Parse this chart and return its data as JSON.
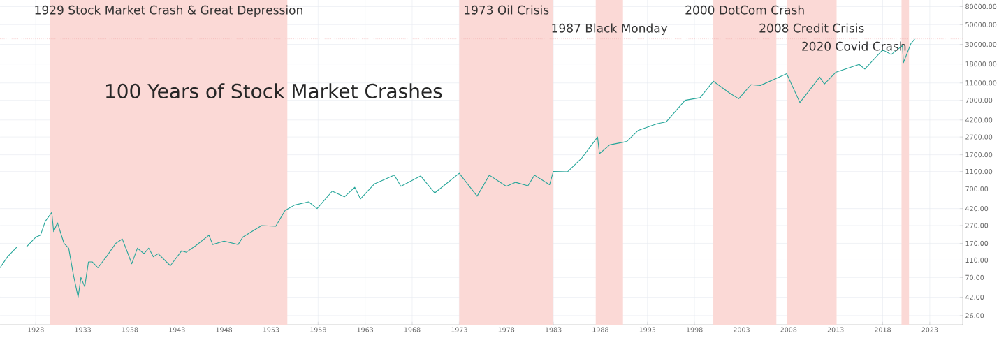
{
  "chart_data": {
    "type": "line",
    "title": "100 Years of Stock Market Crashes",
    "series": [
      {
        "color": "#26a69a",
        "x": [
          1924.2,
          1925.0,
          1926.0,
          1927.0,
          1928.0,
          1928.5,
          1929.0,
          1929.7,
          1929.9,
          1930.3,
          1931.0,
          1931.5,
          1932.0,
          1932.5,
          1932.8,
          1933.2,
          1933.6,
          1934.0,
          1934.6,
          1935.5,
          1936.5,
          1937.2,
          1937.8,
          1938.2,
          1938.8,
          1939.5,
          1940.0,
          1940.5,
          1941.0,
          1942.3,
          1943.5,
          1944.0,
          1945.0,
          1946.4,
          1946.8,
          1948.0,
          1949.5,
          1950.0,
          1952.0,
          1953.5,
          1954.5,
          1955.5,
          1957.0,
          1957.9,
          1959.5,
          1960.8,
          1961.9,
          1962.5,
          1964.0,
          1966.1,
          1966.8,
          1968.9,
          1970.4,
          1973.0,
          1974.9,
          1976.2,
          1978.0,
          1979.0,
          1980.3,
          1981.0,
          1982.6,
          1983.0,
          1984.5,
          1986.0,
          1987.7,
          1987.9,
          1989.0,
          1990.8,
          1992.0,
          1994.0,
          1995.0,
          1997.0,
          1998.6,
          2000.0,
          2001.7,
          2002.7,
          2004.0,
          2005.0,
          2007.8,
          2009.2,
          2011.3,
          2011.8,
          2013.0,
          2015.5,
          2016.1,
          2018.0,
          2018.9,
          2020.1,
          2020.2,
          2021.0,
          2021.4
        ],
        "values": [
          90,
          120,
          155,
          155,
          200,
          210,
          300,
          380,
          230,
          290,
          170,
          150,
          75,
          42,
          70,
          55,
          105,
          105,
          90,
          120,
          170,
          190,
          130,
          100,
          150,
          130,
          150,
          120,
          130,
          95,
          140,
          135,
          160,
          210,
          165,
          180,
          165,
          200,
          270,
          265,
          400,
          460,
          500,
          420,
          660,
          570,
          730,
          540,
          800,
          1000,
          750,
          980,
          630,
          1050,
          580,
          1000,
          750,
          830,
          760,
          1000,
          780,
          1100,
          1090,
          1550,
          2700,
          1750,
          2200,
          2400,
          3200,
          3800,
          4000,
          7000,
          7500,
          11500,
          8500,
          7300,
          10500,
          10300,
          14000,
          6600,
          12800,
          10700,
          14500,
          17800,
          15800,
          26000,
          23000,
          29000,
          18600,
          30600,
          34500
        ]
      }
    ],
    "xlim": [
      1924.2,
      2026.5
    ],
    "xticks": [
      1928,
      1933,
      1938,
      1943,
      1948,
      1953,
      1958,
      1963,
      1968,
      1973,
      1978,
      1983,
      1988,
      1993,
      1998,
      2003,
      2008,
      2013,
      2018,
      2023
    ],
    "ylim": [
      20.5,
      95000
    ],
    "log": "y",
    "yticks": [
      {
        "value": 26,
        "label": "26.00"
      },
      {
        "value": 42,
        "label": "42.00"
      },
      {
        "value": 70,
        "label": "70.00"
      },
      {
        "value": 110,
        "label": "110.00"
      },
      {
        "value": 170,
        "label": "170.00"
      },
      {
        "value": 270,
        "label": "270.00"
      },
      {
        "value": 420,
        "label": "420.00"
      },
      {
        "value": 700,
        "label": "700.00"
      },
      {
        "value": 1100,
        "label": "1100.00"
      },
      {
        "value": 1700,
        "label": "1700.00"
      },
      {
        "value": 2700,
        "label": "2700.00"
      },
      {
        "value": 4200,
        "label": "4200.00"
      },
      {
        "value": 7000,
        "label": "7000.00"
      },
      {
        "value": 11000,
        "label": "11000.00"
      },
      {
        "value": 18000,
        "label": "18000.00"
      },
      {
        "value": 30000,
        "label": "30000.00"
      },
      {
        "value": 50000,
        "label": "50000.00"
      },
      {
        "value": 80000,
        "label": "80000.00"
      }
    ],
    "grid": true,
    "ref_lines": [
      {
        "axis": "y",
        "value": 34500,
        "color": "#ef9a9a",
        "line_style": "dotted"
      }
    ],
    "bands": [
      {
        "axis": "x",
        "from": 1929.5,
        "to": 1954.75,
        "color": "#fbd9d6",
        "label": "1929 Stock Market Crash & Great Depression"
      },
      {
        "axis": "x",
        "from": 1973.0,
        "to": 1983.0,
        "color": "#fbd9d6",
        "label": "1973 Oil Crisis"
      },
      {
        "axis": "x",
        "from": 1987.5,
        "to": 1990.4,
        "color": "#fbd9d6",
        "label": "1987 Black Monday"
      },
      {
        "axis": "x",
        "from": 2000.0,
        "to": 2006.7,
        "color": "#fbd9d6",
        "label": "2000 DotCom Crash"
      },
      {
        "axis": "x",
        "from": 2007.8,
        "to": 2013.1,
        "color": "#fbd9d6",
        "label": "2008 Credit Crisis"
      },
      {
        "axis": "x",
        "from": 2020.0,
        "to": 2020.8,
        "color": "#fbd9d6",
        "label": "2020 Covid Crash"
      }
    ]
  }
}
